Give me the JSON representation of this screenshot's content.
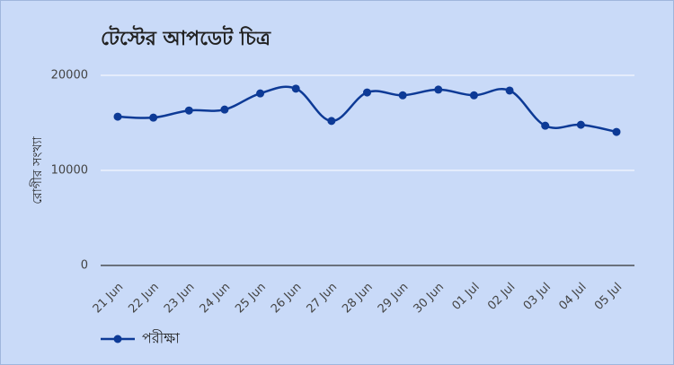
{
  "chart_data": {
    "type": "line",
    "title": "টেস্টের আপডেট চিত্র",
    "y_label": "রোগীর সংখ্যা",
    "categories": [
      "21 Jun",
      "22 Jun",
      "23 Jun",
      "24 Jun",
      "25 Jun",
      "26 Jun",
      "27 Jun",
      "28 Jun",
      "29 Jun",
      "30 Jun",
      "01 Jul",
      "02 Jul",
      "03 Jul",
      "04 Jul",
      "05 Jul"
    ],
    "series": [
      {
        "name": "পরীক্ষা",
        "color": "#0d3a96",
        "values": [
          15650,
          15550,
          16300,
          16400,
          18100,
          18600,
          15200,
          18200,
          17900,
          18500,
          17900,
          18400,
          14700,
          14800,
          14050
        ]
      }
    ],
    "ylim": [
      0,
      20000
    ],
    "yticks": [
      0,
      10000,
      20000
    ],
    "grid": true,
    "legend": "bottom-left"
  }
}
